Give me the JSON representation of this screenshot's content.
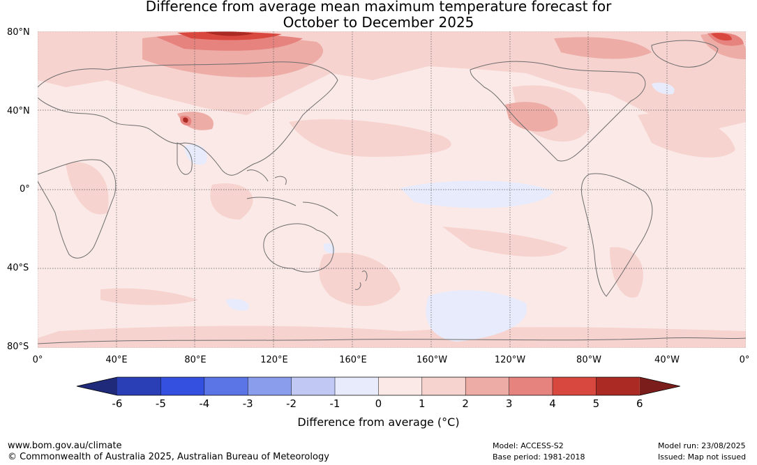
{
  "title": {
    "line1": "Difference from average mean maximum temperature forecast for",
    "line2": "October to December 2025"
  },
  "map": {
    "lat_labels": [
      "80°N",
      "40°N",
      "0°",
      "40°S",
      "80°S"
    ],
    "lon_labels": [
      "0°",
      "40°E",
      "80°E",
      "120°E",
      "160°E",
      "160°W",
      "120°W",
      "80°W",
      "40°W",
      "0°"
    ],
    "colors": {
      "ocean_base": "#fbe9e7",
      "land_outline": "#6d6d6d",
      "graticule": "#555555"
    }
  },
  "colorbar": {
    "ticks": [
      "-6",
      "-5",
      "-4",
      "-3",
      "-2",
      "-1",
      "0",
      "1",
      "2",
      "3",
      "4",
      "5",
      "6"
    ],
    "colors": [
      "#1f2b7a",
      "#2a3fb5",
      "#3350e0",
      "#5b74e6",
      "#8a9cec",
      "#c0c8f3",
      "#e7ebfb",
      "#fbe9e7",
      "#f6d3cf",
      "#eeaca7",
      "#e6837e",
      "#d9483f",
      "#ab2a24",
      "#7b1d1a"
    ],
    "label": "Difference from average (°C)"
  },
  "footer": {
    "website": "www.bom.gov.au/climate",
    "copyright": "© Commonwealth of Australia 2025, Australian Bureau of Meteorology",
    "model": "Model: ACCESS-S2",
    "base_period": "Base period: 1981-2018",
    "model_run": "Model run: 23/08/2025",
    "issued": "Issued: Map not issued"
  }
}
